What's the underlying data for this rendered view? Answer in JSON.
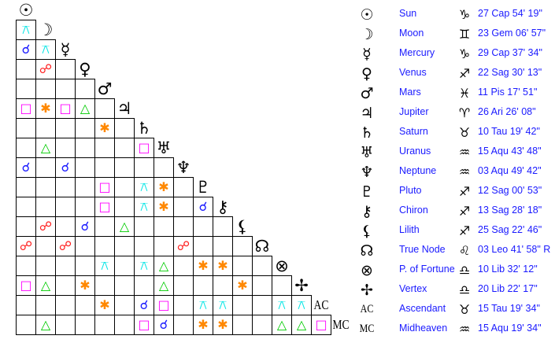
{
  "aspect_types": {
    "conjunction": {
      "glyph": "☌",
      "color": "#1a1aff"
    },
    "opposition": {
      "glyph": "☍",
      "color": "#ff1a1a"
    },
    "square": {
      "glyph": "□",
      "color": "#ff00ff"
    },
    "sextile": {
      "glyph": "✱",
      "color": "#ff8800"
    },
    "trine": {
      "glyph": "△",
      "color": "#00cc00"
    },
    "quincunx": {
      "glyph": "⚻",
      "color": "#00e5e5"
    }
  },
  "planets": [
    {
      "glyph": "☉",
      "name": "Sun",
      "sign_glyph": "♑",
      "position": "27 Cap 54' 19\""
    },
    {
      "glyph": "☽",
      "name": "Moon",
      "sign_glyph": "♊",
      "position": "23 Gem 06' 57\""
    },
    {
      "glyph": "☿",
      "name": "Mercury",
      "sign_glyph": "♑",
      "position": "29 Cap 37' 34\""
    },
    {
      "glyph": "♀",
      "name": "Venus",
      "sign_glyph": "♐",
      "position": "22 Sag 30' 13\""
    },
    {
      "glyph": "♂",
      "name": "Mars",
      "sign_glyph": "♓",
      "position": "11 Pis 17' 51\""
    },
    {
      "glyph": "♃",
      "name": "Jupiter",
      "sign_glyph": "♈",
      "position": "26 Ari 26' 08\""
    },
    {
      "glyph": "♄",
      "name": "Saturn",
      "sign_glyph": "♉",
      "position": "10 Tau 19' 42\""
    },
    {
      "glyph": "♅",
      "name": "Uranus",
      "sign_glyph": "♒",
      "position": "15 Aqu 43' 48\""
    },
    {
      "glyph": "♆",
      "name": "Neptune",
      "sign_glyph": "♒",
      "position": "03 Aqu 49' 42\""
    },
    {
      "glyph": "♇",
      "name": "Pluto",
      "sign_glyph": "♐",
      "position": "12 Sag 00' 53\""
    },
    {
      "glyph": "⚷",
      "name": "Chiron",
      "sign_glyph": "♐",
      "position": "13 Sag 28' 18\""
    },
    {
      "glyph": "⚸",
      "name": "Lilith",
      "sign_glyph": "♐",
      "position": "25 Sag 22' 46\""
    },
    {
      "glyph": "☊",
      "name": "True Node",
      "sign_glyph": "♌",
      "position": "03 Leo 41' 58\" R"
    },
    {
      "glyph": "⊗",
      "name": "P. of Fortune",
      "sign_glyph": "♎",
      "position": "10 Lib 32' 12\""
    },
    {
      "glyph": "✢",
      "name": "Vertex",
      "sign_glyph": "♎",
      "position": "20 Lib 22' 17\""
    },
    {
      "glyph": "AC",
      "name": "Ascendant",
      "sign_glyph": "♉",
      "position": "15 Tau 19' 34\""
    },
    {
      "glyph": "MC",
      "name": "Midheaven",
      "sign_glyph": "♒",
      "position": "15 Aqu 19' 34\""
    }
  ],
  "aspect_grid": [
    [],
    [
      [
        0,
        "quincunx"
      ]
    ],
    [
      [
        0,
        "conjunction"
      ],
      [
        1,
        "quincunx"
      ]
    ],
    [
      [
        1,
        "opposition"
      ]
    ],
    [],
    [
      [
        0,
        "square"
      ],
      [
        1,
        "sextile"
      ],
      [
        2,
        "square"
      ],
      [
        3,
        "trine"
      ]
    ],
    [
      [
        4,
        "sextile"
      ]
    ],
    [
      [
        1,
        "trine"
      ],
      [
        6,
        "square"
      ]
    ],
    [
      [
        0,
        "conjunction"
      ],
      [
        2,
        "conjunction"
      ]
    ],
    [
      [
        4,
        "square"
      ],
      [
        6,
        "quincunx"
      ],
      [
        7,
        "sextile"
      ]
    ],
    [
      [
        4,
        "square"
      ],
      [
        6,
        "quincunx"
      ],
      [
        7,
        "sextile"
      ],
      [
        9,
        "conjunction"
      ]
    ],
    [
      [
        1,
        "opposition"
      ],
      [
        3,
        "conjunction"
      ],
      [
        5,
        "trine"
      ]
    ],
    [
      [
        0,
        "opposition"
      ],
      [
        2,
        "opposition"
      ],
      [
        8,
        "opposition"
      ]
    ],
    [
      [
        4,
        "quincunx"
      ],
      [
        6,
        "quincunx"
      ],
      [
        7,
        "trine"
      ],
      [
        9,
        "sextile"
      ],
      [
        10,
        "sextile"
      ]
    ],
    [
      [
        0,
        "square"
      ],
      [
        1,
        "trine"
      ],
      [
        3,
        "sextile"
      ],
      [
        7,
        "trine"
      ],
      [
        11,
        "sextile"
      ]
    ],
    [
      [
        4,
        "sextile"
      ],
      [
        6,
        "conjunction"
      ],
      [
        7,
        "square"
      ],
      [
        9,
        "quincunx"
      ],
      [
        10,
        "quincunx"
      ],
      [
        13,
        "quincunx"
      ],
      [
        14,
        "quincunx"
      ]
    ],
    [
      [
        1,
        "trine"
      ],
      [
        6,
        "square"
      ],
      [
        7,
        "conjunction"
      ],
      [
        9,
        "sextile"
      ],
      [
        10,
        "sextile"
      ],
      [
        13,
        "trine"
      ],
      [
        14,
        "trine"
      ],
      [
        15,
        "square"
      ]
    ]
  ]
}
